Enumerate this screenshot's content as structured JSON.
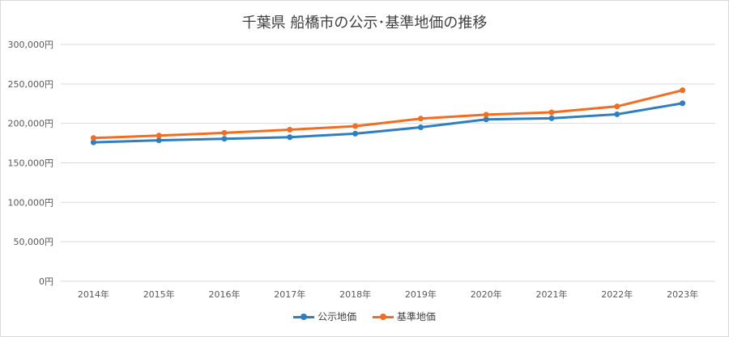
{
  "chart_data": {
    "type": "line",
    "title": "千葉県 船橋市の公示･基準地価の推移",
    "categories": [
      "2014年",
      "2015年",
      "2016年",
      "2017年",
      "2018年",
      "2019年",
      "2020年",
      "2021年",
      "2022年",
      "2023年"
    ],
    "ylim": [
      0,
      300000
    ],
    "yticks": [
      0,
      50000,
      100000,
      150000,
      200000,
      250000,
      300000
    ],
    "ytick_labels": [
      "0円",
      "50,000円",
      "100,000円",
      "150,000円",
      "200,000円",
      "250,000円",
      "300,000円"
    ],
    "grid": true,
    "legend_position": "bottom",
    "series": [
      {
        "name": "公示地価",
        "color": "#2e7fc1",
        "values": [
          176000,
          178500,
          180500,
          182500,
          187000,
          195000,
          205000,
          206500,
          211500,
          225500
        ]
      },
      {
        "name": "基準地価",
        "color": "#f26d21",
        "values": [
          181500,
          184500,
          188000,
          192000,
          196500,
          206000,
          211000,
          214000,
          221500,
          242000
        ]
      }
    ]
  }
}
